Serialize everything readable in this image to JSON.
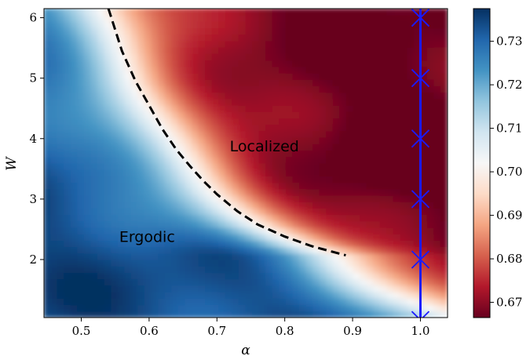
{
  "chart_data": {
    "type": "heatmap",
    "xlabel": "α",
    "ylabel": "W",
    "xlim": [
      0.445,
      1.04
    ],
    "ylim": [
      1.04,
      6.15
    ],
    "x_ticks": [
      {
        "value": 0.5,
        "label": "0.5"
      },
      {
        "value": 0.6,
        "label": "0.6"
      },
      {
        "value": 0.7,
        "label": "0.7"
      },
      {
        "value": 0.8,
        "label": "0.8"
      },
      {
        "value": 0.9,
        "label": "0.9"
      },
      {
        "value": 1.0,
        "label": "1.0"
      }
    ],
    "y_ticks": [
      {
        "value": 2,
        "label": "2"
      },
      {
        "value": 3,
        "label": "3"
      },
      {
        "value": 4,
        "label": "4"
      },
      {
        "value": 5,
        "label": "5"
      },
      {
        "value": 6,
        "label": "6"
      }
    ],
    "colorbar": {
      "colormap": "RdBu",
      "range": [
        0.6665,
        0.7375
      ],
      "ticks": [
        {
          "value": 0.67,
          "label": "0.67"
        },
        {
          "value": 0.68,
          "label": "0.68"
        },
        {
          "value": 0.69,
          "label": "0.69"
        },
        {
          "value": 0.7,
          "label": "0.70"
        },
        {
          "value": 0.71,
          "label": "0.71"
        },
        {
          "value": 0.72,
          "label": "0.72"
        },
        {
          "value": 0.73,
          "label": "0.73"
        }
      ]
    },
    "colors": {
      "low": "#67001f",
      "mid": "#f7f7f7",
      "high": "#053061",
      "boundary": "#000000",
      "marker": "#1a1aff"
    },
    "critical_value": 0.7,
    "boundary_curve": {
      "style": "dashed",
      "x": [
        0.54,
        0.56,
        0.58,
        0.6,
        0.62,
        0.64,
        0.66,
        0.68,
        0.7,
        0.73,
        0.76,
        0.8,
        0.84,
        0.89
      ],
      "y": [
        6.15,
        5.45,
        4.95,
        4.55,
        4.15,
        3.82,
        3.55,
        3.3,
        3.08,
        2.8,
        2.58,
        2.38,
        2.22,
        2.07
      ]
    },
    "marker_series": {
      "marker": "x",
      "x": [
        1.0,
        1.0,
        1.0,
        1.0,
        1.0,
        1.0
      ],
      "y": [
        1.0,
        2.0,
        3.0,
        4.0,
        5.0,
        6.0
      ]
    },
    "vertical_line": {
      "x": 1.0,
      "y": [
        1.04,
        6.15
      ]
    },
    "annotations": [
      {
        "text": "Localized",
        "x": 0.77,
        "y": 3.88
      },
      {
        "text": "Ergodic",
        "x": 0.597,
        "y": 2.38
      }
    ]
  }
}
